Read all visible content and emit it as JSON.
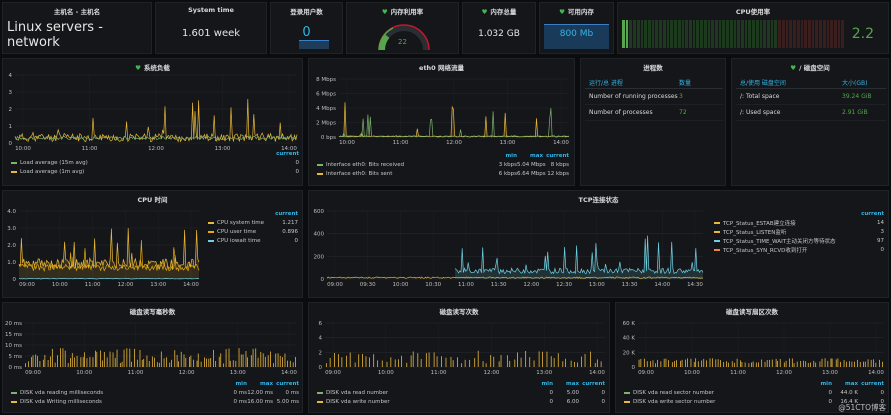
{
  "panels": {
    "hostname": {
      "title": "主机名 - 主机名",
      "value": "Linux servers - network"
    },
    "uptime": {
      "title": "System time",
      "value": "1.601 week"
    },
    "users": {
      "title": "登录用户数",
      "value": "0"
    },
    "mem_util": {
      "title": "内存利用率",
      "value": "22",
      "level_percent": 22
    },
    "mem_total": {
      "title": "内存总量",
      "value": "1.032 GB"
    },
    "mem_free": {
      "title": "可用内存",
      "value": "800 Mb"
    },
    "cpu_util": {
      "title": "CPU使用率",
      "value": "2.2"
    }
  },
  "system_load": {
    "title": "系统负载",
    "yticks": [
      "4",
      "3",
      "2",
      "1",
      "0"
    ],
    "xticks": [
      "10:00",
      "11:00",
      "12:00",
      "13:00",
      "14:00"
    ],
    "legend_header": "current",
    "legend": [
      {
        "name": "Load average (15m avg)",
        "current": "0",
        "color": "#7eb26d"
      },
      {
        "name": "Load average (1m avg)",
        "current": "0",
        "color": "#eab839"
      }
    ]
  },
  "eth0": {
    "title": "eth0 网络流量",
    "yticks": [
      "8 Mbps",
      "6 Mbps",
      "4 Mbps",
      "2 Mbps",
      "0 bps"
    ],
    "xticks": [
      "10:00",
      "11:00",
      "12:00",
      "13:00",
      "14:00"
    ],
    "legend_headers": [
      "min",
      "max",
      "current"
    ],
    "legend": [
      {
        "name": "Interface eth0: Bits received",
        "min": "3 kbps",
        "max": "5.04 Mbps",
        "current": "8 kbps",
        "color": "#7eb26d"
      },
      {
        "name": "Interface eth0: Bits sent",
        "min": "6 kbps",
        "max": "6.64 Mbps",
        "current": "12 kbps",
        "color": "#eab839"
      }
    ]
  },
  "processes": {
    "title": "进程数",
    "headers": [
      "运行/总 进程",
      "数量"
    ],
    "rows": [
      {
        "name": "Number of running processes",
        "value": "3"
      },
      {
        "name": "Number of processes",
        "value": "72"
      }
    ]
  },
  "disk_space": {
    "title": "/ 磁盘空间",
    "headers": [
      "总/使用 磁盘空间",
      "大小(GB)"
    ],
    "rows": [
      {
        "name": "/: Total space",
        "value": "39.24 GiB"
      },
      {
        "name": "/: Used space",
        "value": "2.91 GiB"
      }
    ]
  },
  "cpu_time": {
    "title": "CPU 时间",
    "yticks": [
      "4.0",
      "3.0",
      "2.0",
      "1.0",
      "0"
    ],
    "xticks": [
      "09:00",
      "10:00",
      "11:00",
      "12:00",
      "13:00",
      "14:00"
    ],
    "legend_header": "current",
    "legend": [
      {
        "name": "CPU system time",
        "current": "1.217",
        "color": "#eab839"
      },
      {
        "name": "CPU user time",
        "current": "0.896",
        "color": "#e5ac0e"
      },
      {
        "name": "CPU iowait time",
        "current": "0",
        "color": "#6ed0e0"
      }
    ]
  },
  "tcp": {
    "title": "TCP连接状态",
    "yticks": [
      "600",
      "400",
      "200",
      "0"
    ],
    "xticks": [
      "09:00",
      "09:30",
      "10:00",
      "10:30",
      "11:00",
      "11:30",
      "12:00",
      "12:30",
      "13:00",
      "13:30",
      "14:00",
      "14:30"
    ],
    "legend_header": "current",
    "legend": [
      {
        "name": "TCP_Status_ESTAB建立连接",
        "current": "14",
        "color": "#eab839"
      },
      {
        "name": "TCP_Status_LISTEN监听",
        "current": "3",
        "color": "#eab839"
      },
      {
        "name": "TCP_Status_TIME_WAIT主动关闭方等待状态",
        "current": "97",
        "color": "#6ed0e0"
      },
      {
        "name": "TCP_Status_SYN_RCVD收到打开",
        "current": "0",
        "color": "#ef843c"
      }
    ]
  },
  "disk_ms": {
    "title": "磁盘读写毫秒数",
    "yticks": [
      "20 ms",
      "15 ms",
      "10 ms",
      "5 ms",
      "0 ms"
    ],
    "xticks": [
      "09:00",
      "10:00",
      "11:00",
      "12:00",
      "13:00",
      "14:00"
    ],
    "legend_headers": [
      "min",
      "max",
      "current"
    ],
    "legend": [
      {
        "name": "DISK vda reading milliseconds",
        "min": "0 ms",
        "max": "12.00 ms",
        "current": "0 ms",
        "color": "#7eb26d"
      },
      {
        "name": "DISK vda Writing milliseconds",
        "min": "0 ms",
        "max": "16.00 ms",
        "current": "5.00 ms",
        "color": "#eab839"
      }
    ]
  },
  "disk_count": {
    "title": "磁盘读写次数",
    "yticks": [
      "6",
      "4",
      "2",
      "0"
    ],
    "xticks": [
      "09:00",
      "10:00",
      "11:00",
      "12:00",
      "13:00",
      "14:00"
    ],
    "legend_headers": [
      "min",
      "max",
      "current"
    ],
    "legend": [
      {
        "name": "DISK vda read number",
        "min": "0",
        "max": "5.00",
        "current": "0",
        "color": "#7eb26d"
      },
      {
        "name": "DISK vda write number",
        "min": "0",
        "max": "6.00",
        "current": "0",
        "color": "#eab839"
      }
    ]
  },
  "disk_sector": {
    "title": "磁盘读写扇区次数",
    "yticks": [
      "60 K",
      "40 K",
      "20 K",
      "0"
    ],
    "xticks": [
      "09:00",
      "10:00",
      "11:00",
      "12:00",
      "13:00",
      "14:00"
    ],
    "legend_headers": [
      "min",
      "max",
      "current"
    ],
    "legend": [
      {
        "name": "DISK vda read sector number",
        "min": "0",
        "max": "44.0 K",
        "current": "0",
        "color": "#7eb26d"
      },
      {
        "name": "DISK vda write sector number",
        "min": "0",
        "max": "16.4 K",
        "current": "0",
        "color": "#eab839"
      }
    ]
  },
  "watermark": "@51CTO博客",
  "colors": {
    "accent": "#33b5e5",
    "ok": "#56a64b",
    "yellow": "#eab839",
    "green": "#7eb26d",
    "cyan": "#6ed0e0"
  }
}
